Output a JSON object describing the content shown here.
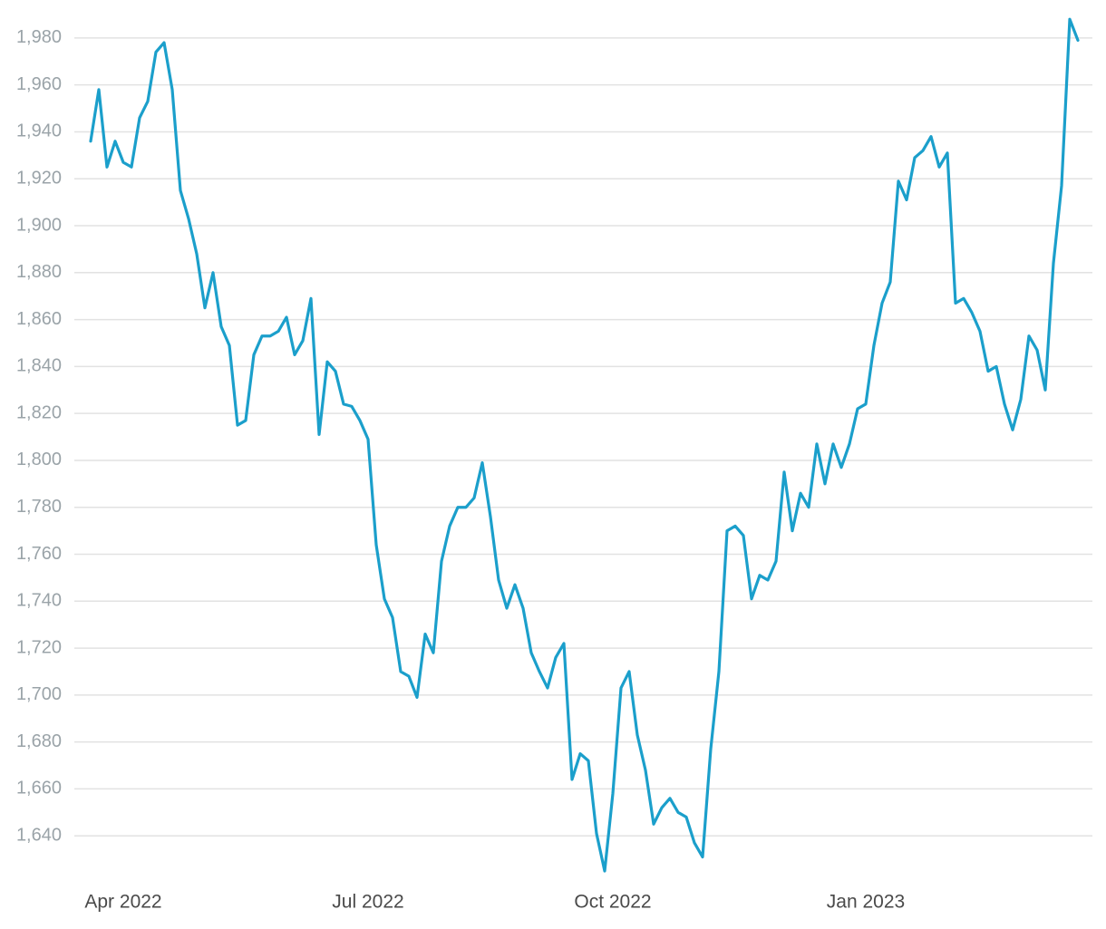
{
  "chart_data": {
    "type": "line",
    "categories": [
      null,
      null,
      null,
      null,
      "Apr 2022",
      null,
      null,
      null,
      null,
      null,
      null,
      null,
      null,
      null,
      null,
      null,
      null,
      null,
      null,
      null,
      null,
      null,
      null,
      null,
      null,
      null,
      null,
      null,
      null,
      null,
      null,
      null,
      null,
      null,
      "Jul 2022",
      null,
      null,
      null,
      null,
      null,
      null,
      null,
      null,
      null,
      null,
      null,
      null,
      null,
      null,
      null,
      null,
      null,
      null,
      null,
      null,
      null,
      null,
      null,
      null,
      null,
      null,
      null,
      null,
      null,
      "Oct 2022",
      null,
      null,
      null,
      null,
      null,
      null,
      null,
      null,
      null,
      null,
      null,
      null,
      null,
      null,
      null,
      null,
      null,
      null,
      null,
      null,
      null,
      null,
      null,
      null,
      null,
      null,
      null,
      null,
      null,
      null,
      "Jan 2023",
      null,
      null,
      null,
      null,
      null,
      null,
      null,
      null,
      null,
      null,
      null,
      null,
      null,
      null,
      null,
      null,
      null,
      null,
      null,
      null,
      null,
      null,
      null,
      null,
      null,
      null
    ],
    "series": [
      {
        "color": "#1b9fcb",
        "values": [
          1936,
          1958,
          1925,
          1936,
          1927,
          1925,
          1946,
          1953,
          1974,
          1978,
          1958,
          1915,
          1903,
          1888,
          1865,
          1880,
          1857,
          1849,
          1815,
          1817,
          1845,
          1853,
          1853,
          1855,
          1861,
          1845,
          1851,
          1869,
          1811,
          1842,
          1838,
          1824,
          1823,
          1817,
          1809,
          1764,
          1741,
          1733,
          1710,
          1708,
          1699,
          1726,
          1718,
          1757,
          1772,
          1780,
          1780,
          1784,
          1799,
          1776,
          1749,
          1737,
          1747,
          1737,
          1718,
          1710,
          1703,
          1716,
          1722,
          1664,
          1675,
          1672,
          1641,
          1625,
          1658,
          1703,
          1710,
          1683,
          1668,
          1645,
          1652,
          1656,
          1650,
          1648,
          1637,
          1631,
          1677,
          1710,
          1770,
          1772,
          1768,
          1741,
          1751,
          1749,
          1757,
          1795,
          1770,
          1786,
          1780,
          1807,
          1790,
          1807,
          1797,
          1807,
          1822,
          1824,
          1849,
          1867,
          1876,
          1919,
          1911,
          1929,
          1932,
          1938,
          1925,
          1931,
          1867,
          1869,
          1863,
          1855,
          1838,
          1840,
          1824,
          1813,
          1826,
          1853,
          1847,
          1830,
          1884,
          1917,
          1988,
          1979
        ]
      }
    ],
    "ylim": [
      1620,
      1990
    ],
    "yticks": [
      {
        "value": 1640,
        "label": "1,640"
      },
      {
        "value": 1660,
        "label": "1,660"
      },
      {
        "value": 1680,
        "label": "1,680"
      },
      {
        "value": 1700,
        "label": "1,700"
      },
      {
        "value": 1720,
        "label": "1,720"
      },
      {
        "value": 1740,
        "label": "1,740"
      },
      {
        "value": 1760,
        "label": "1,760"
      },
      {
        "value": 1780,
        "label": "1,780"
      },
      {
        "value": 1800,
        "label": "1,800"
      },
      {
        "value": 1820,
        "label": "1,820"
      },
      {
        "value": 1840,
        "label": "1,840"
      },
      {
        "value": 1860,
        "label": "1,860"
      },
      {
        "value": 1880,
        "label": "1,880"
      },
      {
        "value": 1900,
        "label": "1,900"
      },
      {
        "value": 1920,
        "label": "1,920"
      },
      {
        "value": 1940,
        "label": "1,940"
      },
      {
        "value": 1960,
        "label": "1,960"
      },
      {
        "value": 1980,
        "label": "1,980"
      }
    ],
    "grid": true
  }
}
